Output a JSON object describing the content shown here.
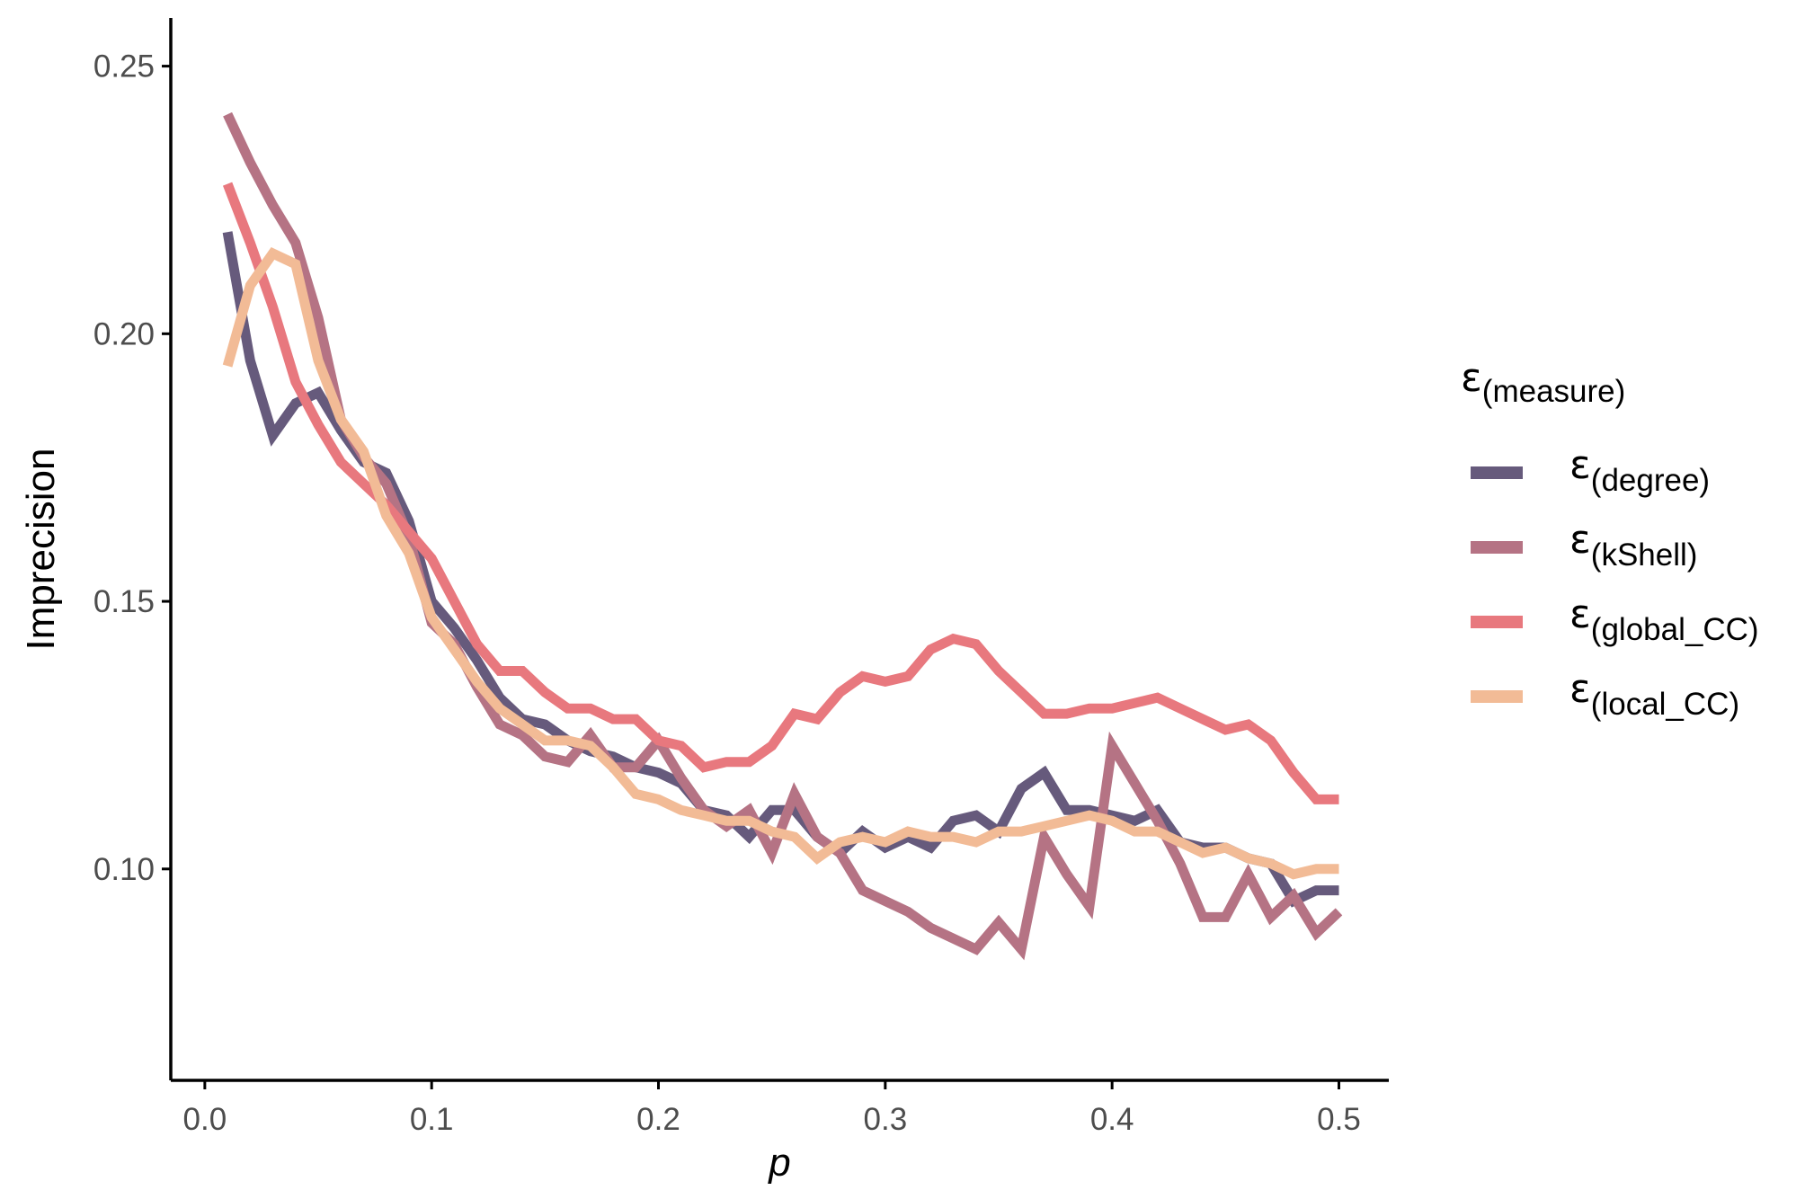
{
  "chart_data": {
    "type": "line",
    "xlabel": "p",
    "ylabel": "Imprecision",
    "xlim": [
      -0.015,
      0.522
    ],
    "ylim": [
      0.0605,
      0.259
    ],
    "xticks": [
      0.0,
      0.1,
      0.2,
      0.3,
      0.4,
      0.5
    ],
    "xtick_labels": [
      "0.0",
      "0.1",
      "0.2",
      "0.3",
      "0.4",
      "0.5"
    ],
    "yticks": [
      0.1,
      0.15,
      0.2,
      0.25
    ],
    "ytick_labels": [
      "0.10",
      "0.15",
      "0.20",
      "0.25"
    ],
    "grid": false,
    "legend": {
      "title_symbol": "ε",
      "title_sub": "(measure)",
      "placement": "right",
      "entries": [
        {
          "symbol": "ε",
          "sub": "(degree)",
          "color": "#665a7c"
        },
        {
          "symbol": "ε",
          "sub": "(kShell)",
          "color": "#b57384"
        },
        {
          "symbol": "ε",
          "sub": "(global_CC)",
          "color": "#e8787e"
        },
        {
          "symbol": "ε",
          "sub": "(local_CC)",
          "color": "#f2bb96"
        }
      ]
    },
    "x": [
      0.01,
      0.02,
      0.03,
      0.04,
      0.05,
      0.06,
      0.07,
      0.08,
      0.09,
      0.1,
      0.11,
      0.12,
      0.13,
      0.14,
      0.15,
      0.16,
      0.17,
      0.18,
      0.19,
      0.2,
      0.21,
      0.22,
      0.23,
      0.24,
      0.25,
      0.26,
      0.27,
      0.28,
      0.29,
      0.3,
      0.31,
      0.32,
      0.33,
      0.34,
      0.35,
      0.36,
      0.37,
      0.38,
      0.39,
      0.4,
      0.41,
      0.42,
      0.43,
      0.44,
      0.45,
      0.46,
      0.47,
      0.48,
      0.49,
      0.5
    ],
    "series": [
      {
        "name": "ε(degree)",
        "color": "#665a7c",
        "values": [
          0.219,
          0.195,
          0.181,
          0.187,
          0.189,
          0.182,
          0.176,
          0.174,
          0.165,
          0.15,
          0.145,
          0.139,
          0.132,
          0.128,
          0.127,
          0.124,
          0.122,
          0.121,
          0.119,
          0.118,
          0.116,
          0.111,
          0.11,
          0.106,
          0.111,
          0.111,
          0.106,
          0.103,
          0.107,
          0.104,
          0.106,
          0.104,
          0.109,
          0.11,
          0.107,
          0.115,
          0.118,
          0.111,
          0.111,
          0.11,
          0.109,
          0.111,
          0.105,
          0.104,
          0.104,
          0.102,
          0.101,
          0.094,
          0.096,
          0.096
        ]
      },
      {
        "name": "ε(kShell)",
        "color": "#b57384",
        "values": [
          0.241,
          0.232,
          0.224,
          0.217,
          0.203,
          0.184,
          0.177,
          0.172,
          0.162,
          0.146,
          0.142,
          0.134,
          0.127,
          0.125,
          0.121,
          0.12,
          0.125,
          0.119,
          0.119,
          0.124,
          0.117,
          0.111,
          0.108,
          0.111,
          0.103,
          0.114,
          0.106,
          0.103,
          0.096,
          0.094,
          0.092,
          0.089,
          0.087,
          0.085,
          0.09,
          0.085,
          0.106,
          0.099,
          0.093,
          0.123,
          0.116,
          0.109,
          0.101,
          0.091,
          0.091,
          0.099,
          0.091,
          0.095,
          0.088,
          0.092
        ]
      },
      {
        "name": "ε(global_CC)",
        "color": "#e8787e",
        "values": [
          0.228,
          0.217,
          0.205,
          0.191,
          0.183,
          0.176,
          0.172,
          0.168,
          0.163,
          0.158,
          0.15,
          0.142,
          0.137,
          0.137,
          0.133,
          0.13,
          0.13,
          0.128,
          0.128,
          0.124,
          0.123,
          0.119,
          0.12,
          0.12,
          0.123,
          0.129,
          0.128,
          0.133,
          0.136,
          0.135,
          0.136,
          0.141,
          0.143,
          0.142,
          0.137,
          0.133,
          0.129,
          0.129,
          0.13,
          0.13,
          0.131,
          0.132,
          0.13,
          0.128,
          0.126,
          0.127,
          0.124,
          0.118,
          0.113,
          0.113
        ]
      },
      {
        "name": "ε(local_CC)",
        "color": "#f2bb96",
        "values": [
          0.194,
          0.209,
          0.215,
          0.213,
          0.195,
          0.184,
          0.178,
          0.166,
          0.159,
          0.147,
          0.141,
          0.135,
          0.13,
          0.127,
          0.124,
          0.124,
          0.123,
          0.119,
          0.114,
          0.113,
          0.111,
          0.11,
          0.109,
          0.109,
          0.107,
          0.106,
          0.102,
          0.105,
          0.106,
          0.105,
          0.107,
          0.106,
          0.106,
          0.105,
          0.107,
          0.107,
          0.108,
          0.109,
          0.11,
          0.109,
          0.107,
          0.107,
          0.105,
          0.103,
          0.104,
          0.102,
          0.101,
          0.099,
          0.1,
          0.1
        ]
      }
    ]
  }
}
